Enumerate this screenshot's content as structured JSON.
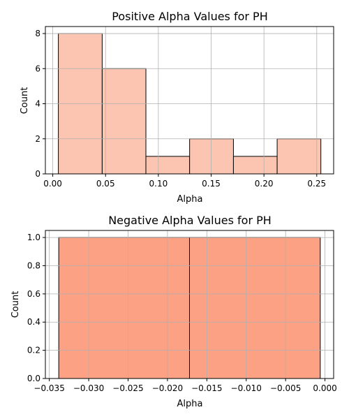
{
  "chart_data": [
    {
      "type": "bar",
      "title": "Positive Alpha Values for PH",
      "xlabel": "Alpha",
      "ylabel": "Count",
      "bar_color": "#fcc5b1",
      "edge_color": "#000000",
      "bin_edges": [
        0.0053,
        0.0468,
        0.0882,
        0.1296,
        0.1711,
        0.2125,
        0.2539
      ],
      "values": [
        8,
        6,
        1,
        2,
        1,
        2
      ],
      "xlim": [
        -0.007,
        0.266
      ],
      "ylim": [
        0,
        8.4
      ],
      "xticks": [
        0.0,
        0.05,
        0.1,
        0.15,
        0.2,
        0.25
      ],
      "xtick_labels": [
        "0.00",
        "0.05",
        "0.10",
        "0.15",
        "0.20",
        "0.25"
      ],
      "yticks": [
        0,
        2,
        4,
        6,
        8
      ],
      "ytick_labels": [
        "0",
        "2",
        "4",
        "6",
        "8"
      ],
      "grid": true
    },
    {
      "type": "bar",
      "title": "Negative Alpha Values for PH",
      "xlabel": "Alpha",
      "ylabel": "Count",
      "bar_color": "#fca184",
      "edge_color": "#000000",
      "bin_edges": [
        -0.0338,
        -0.0172,
        -0.0006
      ],
      "values": [
        1,
        1
      ],
      "xlim": [
        -0.0355,
        0.0011
      ],
      "ylim": [
        0,
        1.05
      ],
      "xticks": [
        -0.035,
        -0.03,
        -0.025,
        -0.02,
        -0.015,
        -0.01,
        -0.005,
        0.0
      ],
      "xtick_labels": [
        "−0.035",
        "−0.030",
        "−0.025",
        "−0.020",
        "−0.015",
        "−0.010",
        "−0.005",
        "0.000"
      ],
      "yticks": [
        0,
        0.2,
        0.4,
        0.6,
        0.8,
        1.0
      ],
      "ytick_labels": [
        "0.0",
        "0.2",
        "0.4",
        "0.6",
        "0.8",
        "1.0"
      ],
      "grid": true
    }
  ]
}
